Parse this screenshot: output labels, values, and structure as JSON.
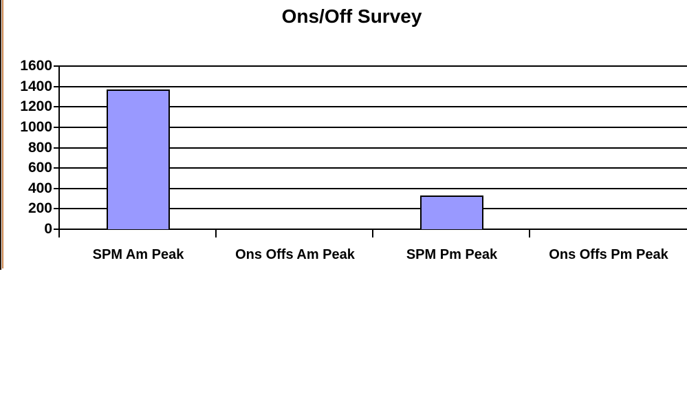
{
  "window": {
    "left_edge_color": "#2b1b10",
    "left_edge_accent_color": "#c8824b"
  },
  "chart_data": {
    "type": "bar",
    "title": "Ons/Off Survey",
    "categories": [
      "SPM Am Peak",
      "Ons Offs Am Peak",
      "SPM Pm Peak",
      "Ons Offs Pm Peak"
    ],
    "values": [
      1370,
      0,
      330,
      0
    ],
    "xlabel": "",
    "ylabel": "",
    "ylim": [
      0,
      1600
    ],
    "yticks": [
      0,
      200,
      400,
      600,
      800,
      1000,
      1200,
      1400,
      1600
    ],
    "ytick_labels": [
      "0",
      "200",
      "400",
      "600",
      "800",
      "1000",
      "1200",
      "1400",
      "1600"
    ],
    "grid": true,
    "legend": false,
    "bar_color": "#9999ff",
    "bar_border_color": "#000000",
    "gridline_color": "#000000",
    "axis_color": "#000000",
    "text_color": "#000000",
    "background_color": "#ffffff"
  }
}
